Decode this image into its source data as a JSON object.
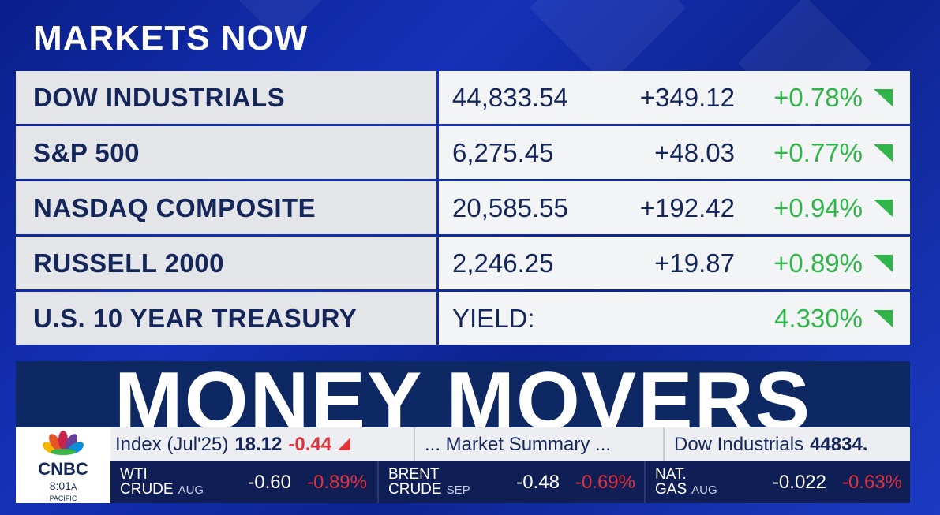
{
  "title": "MARKETS NOW",
  "table": {
    "rows": [
      {
        "name": "DOW INDUSTRIALS",
        "value": "44,833.54",
        "change": "+349.12",
        "pct": "+0.78%"
      },
      {
        "name": "S&P 500",
        "value": "6,275.45",
        "change": "+48.03",
        "pct": "+0.77%"
      },
      {
        "name": "NASDAQ COMPOSITE",
        "value": "20,585.55",
        "change": "+192.42",
        "pct": "+0.94%"
      },
      {
        "name": "RUSSELL 2000",
        "value": "2,246.25",
        "change": "+19.87",
        "pct": "+0.89%"
      },
      {
        "name": "U.S. 10 YEAR TREASURY",
        "value": "YIELD:",
        "pct": "4.330%"
      }
    ]
  },
  "banner": "MONEY MOVERS",
  "logo": {
    "brand": "CNBC",
    "time": "8:01",
    "meridiem": "A",
    "zone": "PACIFIC"
  },
  "ticker": {
    "top": [
      {
        "text": "Index (Jul'25)",
        "value": "18.12",
        "change": "-0.44"
      },
      {
        "text": "... Market Summary ..."
      },
      {
        "text": "Dow Industrials",
        "value": "44834."
      }
    ],
    "bottom": [
      {
        "line1": "WTI",
        "line2": "CRUDE",
        "month": "AUG",
        "change": "-0.60",
        "pct": "-0.89%"
      },
      {
        "line1": "BRENT",
        "line2": "CRUDE",
        "month": "SEP",
        "change": "-0.48",
        "pct": "-0.69%"
      },
      {
        "line1": "NAT.",
        "line2": "GAS",
        "month": "AUG",
        "change": "-0.022",
        "pct": "-0.63%"
      }
    ]
  }
}
